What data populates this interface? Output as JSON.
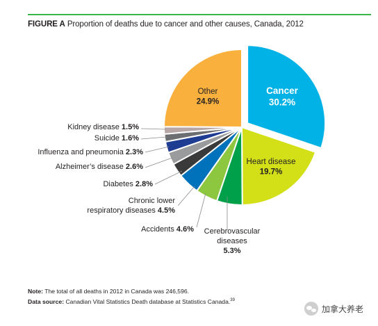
{
  "figure": {
    "label": "FIGURE A",
    "title": "Proportion of deaths due to cancer and other causes, Canada, 2012"
  },
  "chart_data": {
    "type": "pie",
    "title": "Proportion of deaths due to cancer and other causes, Canada, 2012",
    "unit": "%",
    "exploded": "Cancer",
    "slices": [
      {
        "name": "Cancer",
        "value": 30.2,
        "display": "30.2%",
        "color": "#00b2e6"
      },
      {
        "name": "Heart disease",
        "value": 19.7,
        "display": "19.7%",
        "color": "#d3e018"
      },
      {
        "name": "Cerebrovascular diseases",
        "value": 5.3,
        "display": "5.3%",
        "color": "#00a04a"
      },
      {
        "name": "Accidents",
        "value": 4.6,
        "display": "4.6%",
        "color": "#8dc63f"
      },
      {
        "name": "Chronic lower respiratory diseases",
        "value": 4.5,
        "display": "4.5%",
        "color": "#0072bc"
      },
      {
        "name": "Diabetes",
        "value": 2.8,
        "display": "2.8%",
        "color": "#3a3a3a"
      },
      {
        "name": "Alzheimer’s disease",
        "value": 2.6,
        "display": "2.6%",
        "color": "#9a9b9c"
      },
      {
        "name": "Influenza and pneumonia",
        "value": 2.3,
        "display": "2.3%",
        "color": "#1f3c93"
      },
      {
        "name": "Suicide",
        "value": 1.6,
        "display": "1.6%",
        "color": "#6d6e71"
      },
      {
        "name": "Kidney disease",
        "value": 1.5,
        "display": "1.5%",
        "color": "#b8a6a6"
      },
      {
        "name": "Other",
        "value": 24.9,
        "display": "24.9%",
        "color": "#f9b03d"
      }
    ]
  },
  "notes": {
    "note_label": "Note:",
    "note_text": "The total of all deaths in 2012 in Canada was 246,596.",
    "source_label": "Data source:",
    "source_text": "Canadian Vital Statistics Death database at Statistics Canada.",
    "source_ref": "39"
  },
  "watermark": {
    "text": "加拿大养老",
    "icon": "chat-bubble-icon"
  }
}
